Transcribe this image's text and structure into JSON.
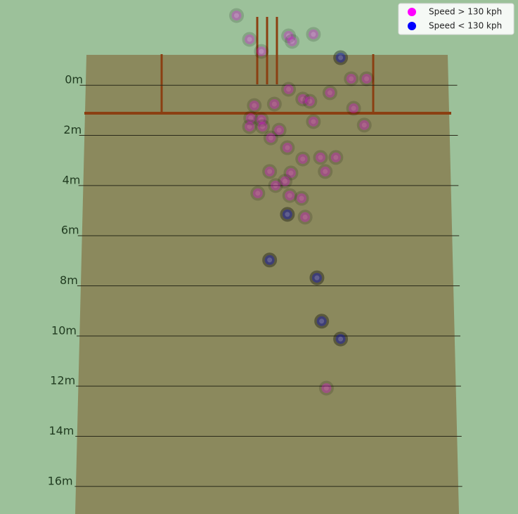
{
  "chart_data": {
    "type": "scatter",
    "xlim": [
      -2.26,
      2.12
    ],
    "ylim": [
      -3.4,
      17.1
    ],
    "yticks": [
      {
        "value": 0,
        "label": "0m"
      },
      {
        "value": 2,
        "label": "2m"
      },
      {
        "value": 4,
        "label": "4m"
      },
      {
        "value": 6,
        "label": "6m"
      },
      {
        "value": 8,
        "label": "8m"
      },
      {
        "value": 10,
        "label": "10m"
      },
      {
        "value": 12,
        "label": "12m"
      },
      {
        "value": 14,
        "label": "14m"
      },
      {
        "value": 16,
        "label": "16m"
      }
    ],
    "legend": "upper right",
    "series": [
      {
        "name": "Speed > 130 kph",
        "color": "#ff00ff",
        "x": [
          -0.26,
          -0.15,
          -0.05,
          0.18,
          0.21,
          0.39,
          0.18,
          0.53,
          0.71,
          0.84,
          -0.11,
          0.06,
          0.3,
          0.36,
          0.73,
          -0.14,
          -0.05,
          -0.15,
          -0.04,
          0.1,
          0.39,
          0.82,
          0.03,
          0.17,
          0.3,
          0.45,
          0.58,
          0.02,
          0.2,
          0.49,
          0.15,
          0.07,
          -0.08,
          0.19,
          0.29,
          0.32,
          0.5
        ],
        "values": [
          -2.78,
          -1.83,
          -1.35,
          -1.97,
          -1.75,
          -2.03,
          0.16,
          0.3,
          -0.26,
          -0.26,
          0.81,
          0.75,
          0.55,
          0.64,
          0.92,
          1.31,
          1.37,
          1.65,
          1.65,
          1.79,
          1.45,
          1.59,
          2.1,
          2.49,
          2.94,
          2.88,
          2.88,
          3.44,
          3.5,
          3.44,
          3.83,
          4.0,
          4.31,
          4.4,
          4.51,
          5.26,
          12.08
        ]
      },
      {
        "name": "Speed < 130 kph",
        "color": "#0000ff",
        "x": [
          0.62,
          0.17,
          0.02,
          0.42,
          0.46,
          0.62
        ],
        "values": [
          -1.1,
          5.15,
          6.97,
          7.68,
          9.41,
          10.12
        ]
      }
    ]
  }
}
